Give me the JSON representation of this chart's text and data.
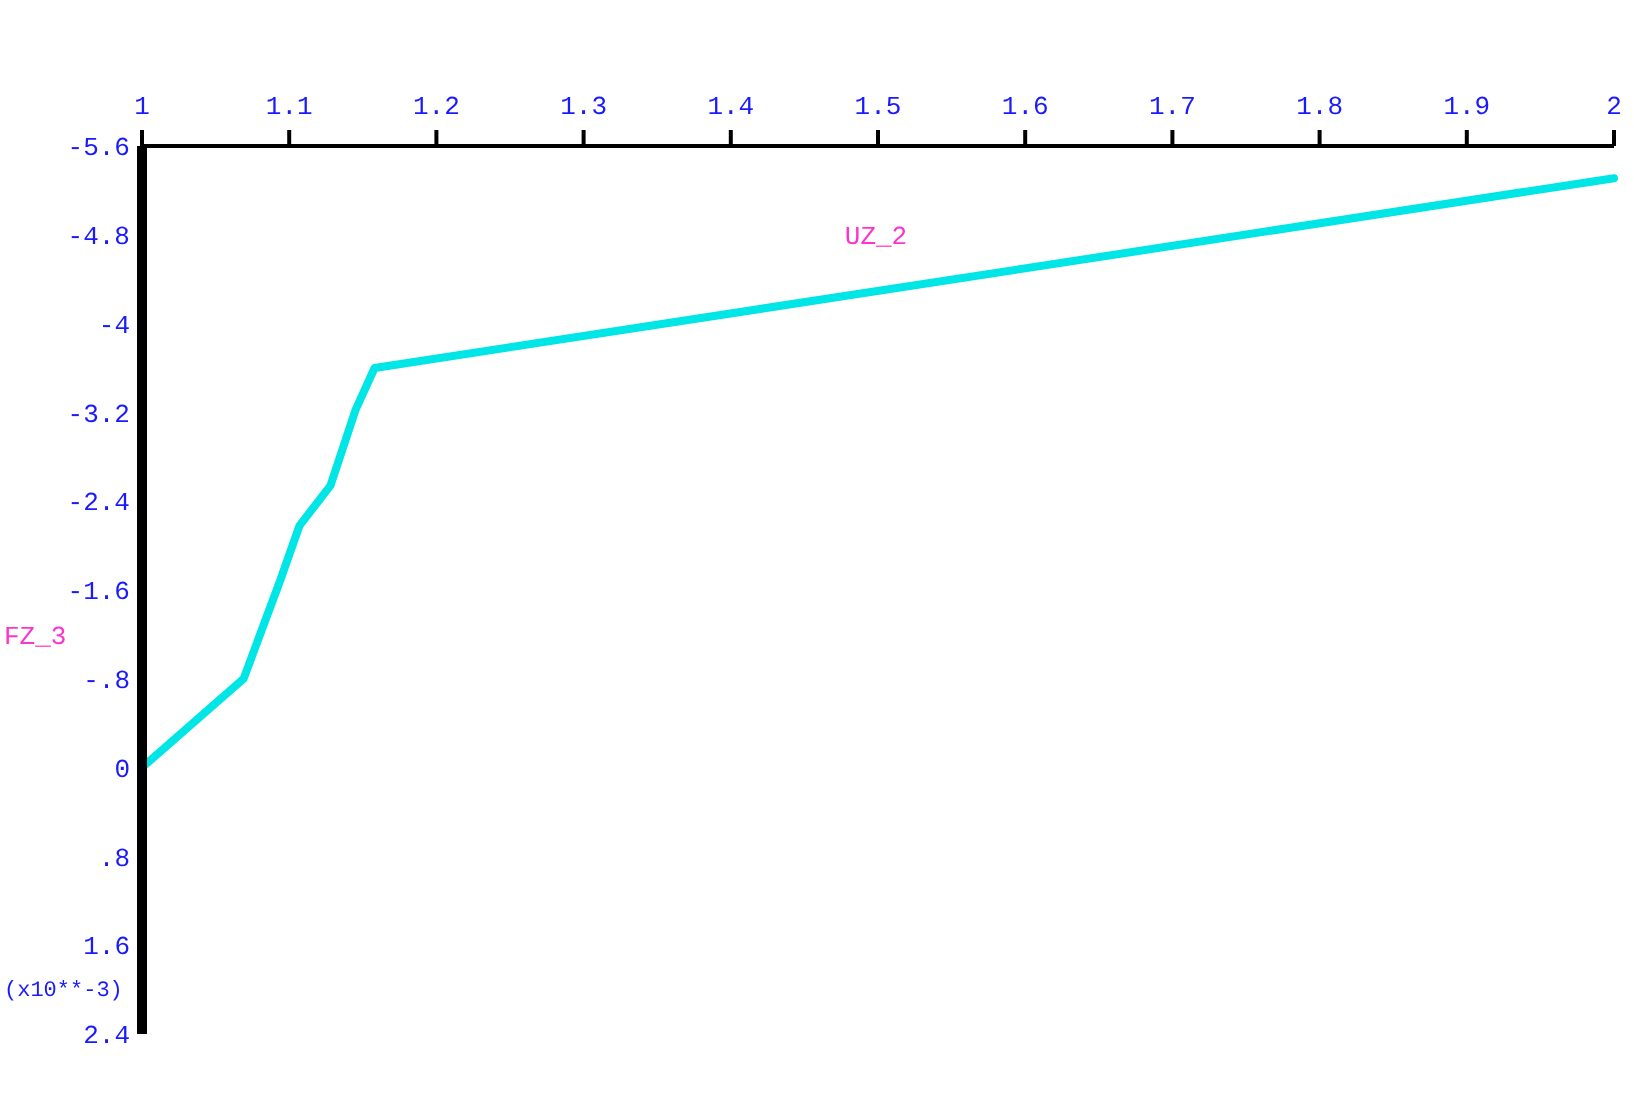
{
  "chart_data": {
    "type": "line",
    "xlabel": "UZ_2",
    "ylabel": "FZ_3",
    "annotations": [
      "(x10**-3)"
    ],
    "series": [
      {
        "color": "#00e5e5",
        "x": [
          1,
          1.069,
          1.094,
          1.107,
          1.128,
          1.145,
          1.158,
          2
        ],
        "values": [
          0,
          -0.8,
          -1.69,
          -2.18,
          -2.54,
          -3.22,
          -3.6,
          -5.31
        ]
      }
    ],
    "xlim": [
      1,
      2
    ],
    "xticks": [
      1,
      1.1,
      1.2,
      1.3,
      1.4,
      1.5,
      1.6,
      1.7,
      1.8,
      1.9,
      2
    ],
    "ylim": [
      2.4,
      -5.6
    ],
    "yticks": [
      -5.6,
      -4.8,
      -4,
      -3.2,
      -2.4,
      {
        "value": -1.6,
        "label": "-1.6"
      },
      {
        "value": -0.8,
        "label": "-.8"
      },
      0,
      {
        "value": 0.8,
        "label": ".8"
      },
      1.6,
      2.4
    ],
    "grid": false,
    "marker": "none",
    "line_style": "solid"
  }
}
